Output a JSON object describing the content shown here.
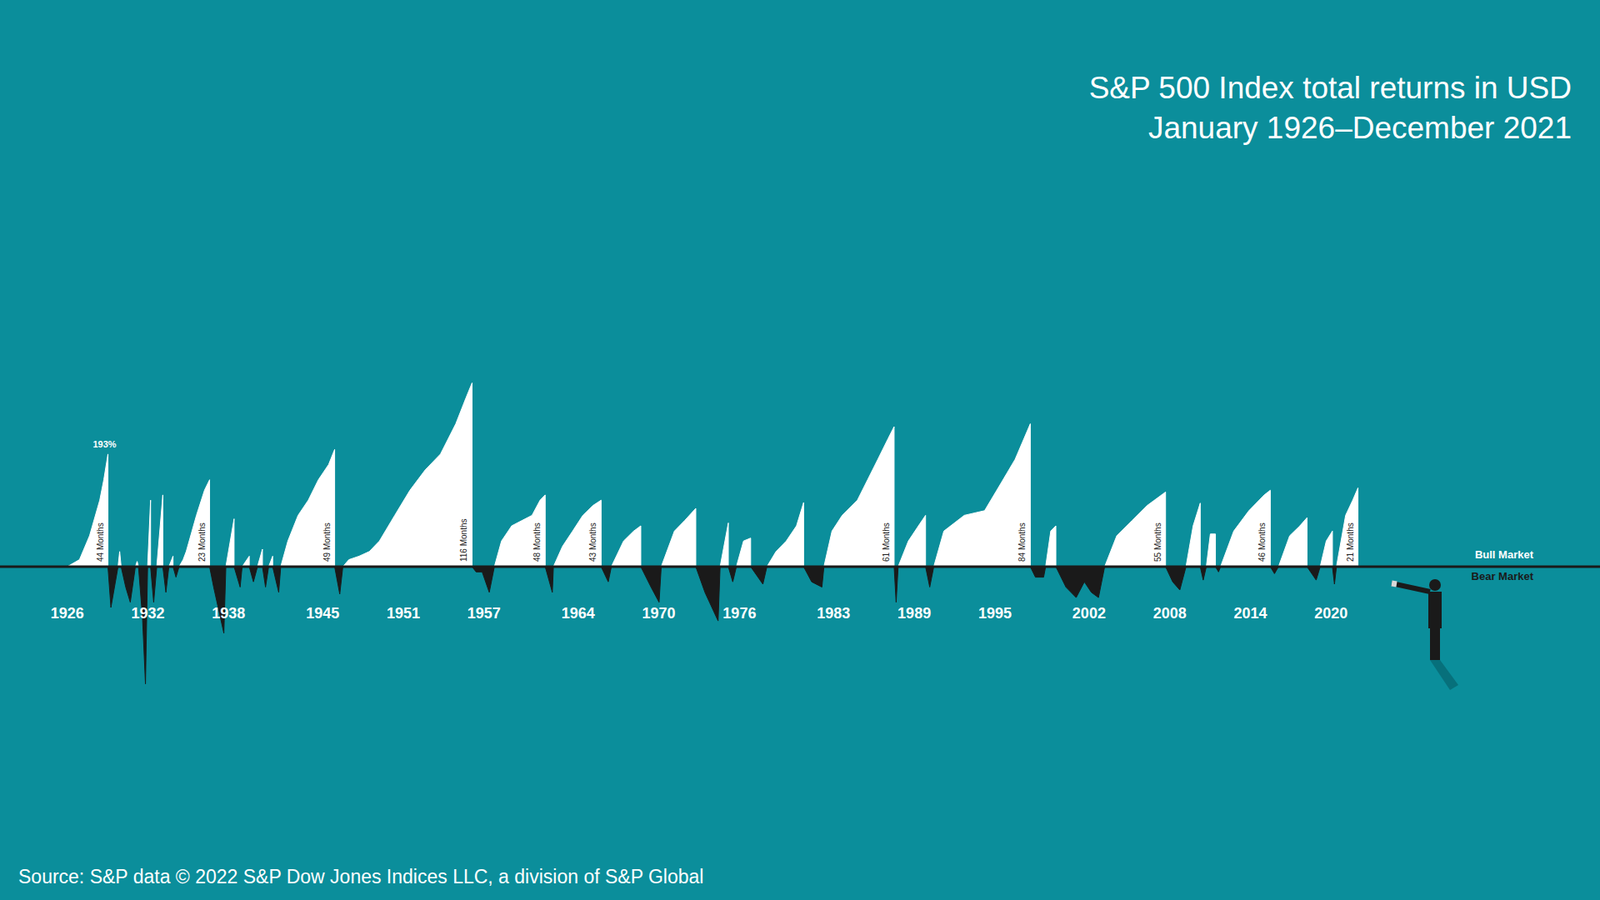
{
  "chart_data": {
    "type": "area",
    "title": "S&P 500 Index total returns in USD",
    "subtitle": "January 1926–December 2021",
    "source": "Source: S&P data © 2022 S&P Dow Jones Indices LLC, a division of S&P Global",
    "tick_labels": "x",
    "xlim": [
      1921,
      2040
    ],
    "xticks": [
      1926,
      1932,
      1938,
      1945,
      1951,
      1957,
      1964,
      1970,
      1976,
      1983,
      1989,
      1995,
      2002,
      2008,
      2014,
      2020
    ],
    "ylim": [
      -250,
      450
    ],
    "x": [
      1926,
      1926.91,
      1927.66,
      1928.42,
      1928.72,
      1929.03,
      1929.03,
      1929.25,
      1929.78,
      1929.9,
      1930.01,
      1930.35,
      1930.69,
      1931.07,
      1931.2,
      1931.3,
      1931.6,
      1931.82,
      1931.98,
      1932.2,
      1932.2,
      1932.43,
      1932.66,
      1933.11,
      1933.11,
      1933.34,
      1933.56,
      1933.87,
      1933.87,
      1934.09,
      1934.32,
      1934.62,
      1934.85,
      1935.61,
      1936.21,
      1936.59,
      1936.59,
      1936.89,
      1937.65,
      1937.8,
      1938.41,
      1938.41,
      1938.86,
      1939.01,
      1939.54,
      1939.54,
      1939.85,
      1940.15,
      1940.52,
      1940.52,
      1940.75,
      1940.98,
      1941.28,
      1941.28,
      1941.73,
      1941.88,
      1942.41,
      1943.17,
      1943.93,
      1944.68,
      1945.44,
      1945.89,
      1945.89,
      1946.27,
      1946.5,
      1946.95,
      1947.71,
      1948.47,
      1949.22,
      1950.36,
      1951.49,
      1952.63,
      1953.76,
      1954.9,
      1955.65,
      1956.11,
      1956.11,
      1956.41,
      1956.86,
      1957.39,
      1957.77,
      1958.3,
      1959.06,
      1959.81,
      1960.57,
      1961.17,
      1961.55,
      1961.55,
      1962.08,
      1962.16,
      1962.84,
      1963.59,
      1964.35,
      1965.11,
      1965.71,
      1965.71,
      1966.24,
      1966.47,
      1967.38,
      1968.13,
      1968.66,
      1968.66,
      1969.42,
      1970.02,
      1970.18,
      1971.16,
      1971.92,
      1972.75,
      1972.75,
      1973.43,
      1974.41,
      1974.56,
      1975.17,
      1975.17,
      1975.5,
      1975.77,
      1976.3,
      1976.83,
      1976.83,
      1977.74,
      1978.04,
      1978.72,
      1979.48,
      1980.24,
      1980.77,
      1980.77,
      1981.37,
      1982.13,
      1982.28,
      1982.88,
      1983.64,
      1984.77,
      1985.53,
      1986.29,
      1987.04,
      1987.5,
      1987.5,
      1987.65,
      1987.8,
      1988.56,
      1989.31,
      1989.84,
      1989.84,
      1990.15,
      1990.45,
      1991.2,
      1992.72,
      1994.23,
      1995.37,
      1996.5,
      1997.63,
      1997.63,
      1998.01,
      1998.62,
      1998.77,
      1999.15,
      1999.53,
      1999.53,
      2000.28,
      2001.04,
      2001.65,
      2002.17,
      2002.7,
      2003.16,
      2004.06,
      2005.2,
      2006.33,
      2007.69,
      2007.69,
      2008.22,
      2008.75,
      2009.21,
      2009.74,
      2010.27,
      2010.27,
      2010.49,
      2010.72,
      2011.02,
      2011.4,
      2011.4,
      2011.63,
      2011.78,
      2012.76,
      2013.89,
      2015.03,
      2015.48,
      2015.48,
      2015.79,
      2016.09,
      2016.92,
      2017.68,
      2018.21,
      2018.21,
      2018.89,
      2019.19,
      2019.64,
      2020.1,
      2020.1,
      2020.25,
      2020.4,
      2021.08,
      2021.61,
      2022,
      2022
    ],
    "series": [
      {
        "name": "Bull Market",
        "color": "#ffffff",
        "values": [
          0,
          12,
          53,
          114,
          149,
          193,
          0,
          null,
          0,
          26,
          0,
          null,
          null,
          0,
          9,
          0,
          null,
          null,
          0,
          114,
          0,
          null,
          0,
          123,
          0,
          null,
          0,
          18,
          0,
          null,
          0,
          12,
          26,
          88,
          131,
          149,
          0,
          null,
          null,
          0,
          82,
          0,
          null,
          0,
          18,
          0,
          null,
          0,
          30,
          0,
          null,
          0,
          18,
          0,
          null,
          0,
          44,
          88,
          114,
          149,
          175,
          201,
          0,
          null,
          0,
          12,
          18,
          26,
          44,
          88,
          131,
          166,
          193,
          245,
          289,
          315,
          0,
          null,
          null,
          null,
          0,
          44,
          70,
          79,
          88,
          114,
          123,
          0,
          null,
          0,
          35,
          61,
          88,
          105,
          114,
          0,
          null,
          0,
          44,
          61,
          70,
          0,
          null,
          null,
          0,
          61,
          79,
          100,
          0,
          null,
          null,
          0,
          75,
          0,
          null,
          0,
          44,
          49,
          0,
          null,
          0,
          26,
          44,
          70,
          110,
          0,
          null,
          null,
          0,
          61,
          88,
          114,
          149,
          184,
          219,
          240,
          0,
          null,
          0,
          44,
          70,
          88,
          0,
          null,
          0,
          61,
          88,
          96,
          140,
          184,
          245,
          0,
          null,
          null,
          0,
          61,
          70,
          0,
          null,
          null,
          null,
          null,
          null,
          0,
          53,
          79,
          105,
          128,
          0,
          null,
          null,
          0,
          70,
          109,
          0,
          null,
          0,
          56,
          56,
          0,
          null,
          0,
          61,
          96,
          123,
          131,
          0,
          null,
          0,
          53,
          70,
          84,
          0,
          null,
          0,
          44,
          61,
          0,
          null,
          0,
          88,
          114,
          135,
          0
        ]
      },
      {
        "name": "Bear Market",
        "color": "#1a1a1a",
        "values": [
          0,
          null,
          null,
          null,
          null,
          null,
          0,
          -70,
          0,
          null,
          0,
          -35,
          -61,
          0,
          null,
          0,
          -88,
          -201,
          0,
          null,
          0,
          -61,
          0,
          null,
          0,
          -44,
          0,
          null,
          0,
          -18,
          0,
          null,
          null,
          null,
          null,
          null,
          0,
          -35,
          -114,
          0,
          null,
          0,
          -35,
          0,
          null,
          0,
          -26,
          0,
          null,
          0,
          -35,
          0,
          null,
          0,
          -44,
          0,
          null,
          null,
          null,
          null,
          null,
          null,
          0,
          -47,
          0,
          null,
          null,
          null,
          null,
          null,
          null,
          null,
          null,
          null,
          null,
          null,
          0,
          -9,
          -9,
          -44,
          0,
          null,
          null,
          null,
          null,
          null,
          null,
          0,
          -44,
          0,
          null,
          null,
          null,
          null,
          null,
          0,
          -26,
          0,
          null,
          null,
          null,
          0,
          -35,
          -61,
          0,
          null,
          null,
          null,
          0,
          -44,
          -93,
          0,
          null,
          0,
          -26,
          0,
          null,
          null,
          0,
          -30,
          0,
          null,
          null,
          null,
          null,
          0,
          -26,
          -35,
          0,
          null,
          null,
          null,
          null,
          null,
          null,
          null,
          0,
          -61,
          0,
          null,
          null,
          null,
          0,
          -35,
          0,
          null,
          null,
          null,
          null,
          null,
          null,
          0,
          -18,
          -18,
          0,
          null,
          null,
          0,
          -35,
          -53,
          -26,
          -44,
          -53,
          0,
          null,
          null,
          null,
          null,
          0,
          -26,
          -40,
          0,
          null,
          null,
          0,
          -23,
          0,
          null,
          null,
          0,
          -9,
          0,
          null,
          null,
          null,
          null,
          0,
          -12,
          0,
          null,
          null,
          null,
          0,
          -23,
          0,
          null,
          null,
          0,
          -30,
          0,
          null,
          null,
          null,
          0
        ]
      }
    ],
    "annotations": [
      {
        "text": "193%",
        "x": 1929.03,
        "y": 193
      },
      {
        "text": "44 Months",
        "x": 1929.03
      },
      {
        "text": "23 Months",
        "x": 1936.59
      },
      {
        "text": "49 Months",
        "x": 1945.89
      },
      {
        "text": "116 Months",
        "x": 1956.11
      },
      {
        "text": "48 Months",
        "x": 1961.55
      },
      {
        "text": "43 Months",
        "x": 1965.71
      },
      {
        "text": "61 Months",
        "x": 1987.5
      },
      {
        "text": "84 Months",
        "x": 1997.63
      },
      {
        "text": "55 Months",
        "x": 2007.69
      },
      {
        "text": "46 Months",
        "x": 2015.48
      },
      {
        "text": "21 Months",
        "x": 2022
      }
    ]
  }
}
